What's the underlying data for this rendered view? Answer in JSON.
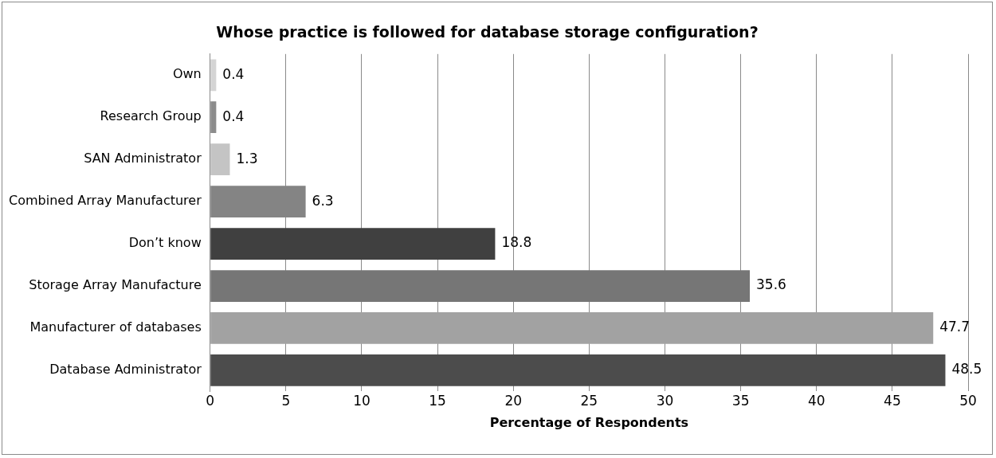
{
  "chart_data": {
    "type": "bar",
    "orientation": "horizontal",
    "title": "Whose practice is followed for database storage configuration?",
    "xlabel": "Percentage of Respondents",
    "categories": [
      "Own",
      "Research Group",
      "SAN Administrator",
      "Combined Array Manufacturer",
      "Don’t know",
      "Storage Array Manufacture",
      "Manufacturer of databases",
      "Database Administrator"
    ],
    "values": [
      0.4,
      0.4,
      1.3,
      6.3,
      18.8,
      35.6,
      47.7,
      48.5
    ],
    "colors": [
      "#d4d4d4",
      "#8c8c8c",
      "#c4c4c4",
      "#848484",
      "#404040",
      "#767676",
      "#a2a2a2",
      "#4c4c4c"
    ],
    "xlim": [
      0,
      50
    ],
    "xticks": [
      0,
      5,
      10,
      15,
      20,
      25,
      30,
      35,
      40,
      45,
      50
    ],
    "grid": "x",
    "data_labels": true,
    "legend": false
  }
}
